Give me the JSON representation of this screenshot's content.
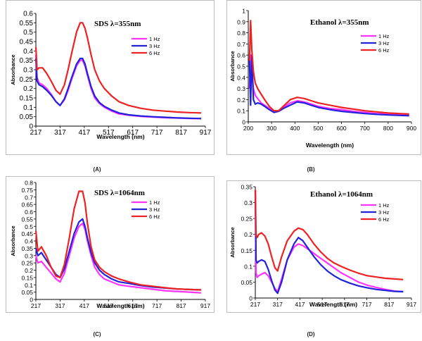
{
  "chart_data": [
    {
      "type": "line",
      "panel_label": "(A)",
      "title": "SDS   λ=355nm",
      "xlabel": "Wavelength  (nm)",
      "ylabel": "Absorbance",
      "xlim": [
        217,
        917
      ],
      "ylim": [
        0,
        0.6
      ],
      "xticks": [
        217,
        317,
        417,
        517,
        617,
        717,
        817,
        917
      ],
      "yticks": [
        "0",
        "0.05",
        "0.1",
        "0.15",
        "0.2",
        "0.25",
        "0.3",
        "0.35",
        "0.4",
        "0.45",
        "0.5",
        "0.55",
        "0.6"
      ],
      "legend_position": "top-right",
      "series": [
        {
          "name": "1 Hz",
          "color": "#ff33ff",
          "x": [
            217,
            222,
            230,
            245,
            262,
            280,
            300,
            317,
            335,
            350,
            365,
            385,
            400,
            410,
            420,
            430,
            445,
            460,
            480,
            500,
            530,
            560,
            600,
            650,
            700,
            750,
            800,
            850,
            900
          ],
          "y": [
            0.38,
            0.26,
            0.23,
            0.22,
            0.2,
            0.17,
            0.13,
            0.11,
            0.14,
            0.19,
            0.25,
            0.32,
            0.35,
            0.35,
            0.32,
            0.27,
            0.2,
            0.15,
            0.12,
            0.1,
            0.08,
            0.065,
            0.058,
            0.052,
            0.048,
            0.045,
            0.043,
            0.041,
            0.04
          ]
        },
        {
          "name": "3 Hz",
          "color": "#2222dd",
          "x": [
            217,
            222,
            230,
            245,
            262,
            280,
            300,
            317,
            335,
            350,
            365,
            385,
            400,
            410,
            420,
            430,
            445,
            460,
            480,
            500,
            530,
            560,
            600,
            650,
            700,
            750,
            800,
            850,
            900
          ],
          "y": [
            0.36,
            0.24,
            0.22,
            0.21,
            0.19,
            0.165,
            0.13,
            0.11,
            0.145,
            0.2,
            0.26,
            0.33,
            0.36,
            0.36,
            0.33,
            0.28,
            0.21,
            0.16,
            0.125,
            0.105,
            0.085,
            0.07,
            0.06,
            0.054,
            0.05,
            0.047,
            0.044,
            0.042,
            0.04
          ]
        },
        {
          "name": "6 Hz",
          "color": "#ee2222",
          "x": [
            217,
            222,
            230,
            245,
            262,
            280,
            300,
            317,
            335,
            350,
            365,
            385,
            400,
            410,
            420,
            430,
            445,
            460,
            480,
            500,
            530,
            560,
            600,
            650,
            700,
            750,
            800,
            850,
            900
          ],
          "y": [
            0.42,
            0.3,
            0.31,
            0.31,
            0.28,
            0.24,
            0.19,
            0.17,
            0.22,
            0.3,
            0.39,
            0.5,
            0.55,
            0.55,
            0.52,
            0.47,
            0.38,
            0.3,
            0.24,
            0.2,
            0.16,
            0.13,
            0.11,
            0.095,
            0.085,
            0.08,
            0.075,
            0.072,
            0.07
          ]
        }
      ]
    },
    {
      "type": "line",
      "panel_label": "(B)",
      "title": "Ethanol λ=355nm",
      "xlabel": "Wavelength  (nm)",
      "ylabel": "Absorbance",
      "xlim": [
        200,
        900
      ],
      "ylim": [
        0,
        1
      ],
      "xticks": [
        200,
        300,
        400,
        500,
        600,
        700,
        800,
        900
      ],
      "yticks": [
        "0",
        "0.1",
        "0.2",
        "0.3",
        "0.4",
        "0.5",
        "0.6",
        "0.7",
        "0.8",
        "0.9",
        "1"
      ],
      "legend_position": "top-right",
      "series": [
        {
          "name": "1 Hz",
          "color": "#ff33ff",
          "x": [
            205,
            210,
            215,
            222,
            230,
            240,
            255,
            270,
            290,
            310,
            330,
            350,
            380,
            410,
            440,
            470,
            500,
            550,
            600,
            650,
            700,
            750,
            800,
            850,
            890
          ],
          "y": [
            0.3,
            0.6,
            0.45,
            0.3,
            0.24,
            0.21,
            0.17,
            0.15,
            0.12,
            0.09,
            0.1,
            0.13,
            0.17,
            0.19,
            0.18,
            0.16,
            0.14,
            0.12,
            0.11,
            0.095,
            0.085,
            0.075,
            0.07,
            0.065,
            0.06
          ]
        },
        {
          "name": "3 Hz",
          "color": "#2222dd",
          "x": [
            205,
            210,
            215,
            222,
            230,
            240,
            255,
            270,
            290,
            310,
            330,
            350,
            380,
            410,
            440,
            470,
            500,
            550,
            600,
            650,
            700,
            750,
            800,
            850,
            890
          ],
          "y": [
            0.55,
            0.15,
            0.6,
            0.2,
            0.16,
            0.17,
            0.16,
            0.14,
            0.11,
            0.085,
            0.095,
            0.12,
            0.15,
            0.18,
            0.17,
            0.15,
            0.13,
            0.11,
            0.095,
            0.085,
            0.075,
            0.068,
            0.062,
            0.058,
            0.055
          ]
        },
        {
          "name": "6 Hz",
          "color": "#ee2222",
          "x": [
            205,
            210,
            215,
            222,
            230,
            240,
            255,
            270,
            290,
            310,
            330,
            350,
            380,
            410,
            440,
            470,
            500,
            550,
            600,
            650,
            700,
            750,
            800,
            850,
            890
          ],
          "y": [
            0.55,
            0.91,
            0.65,
            0.45,
            0.35,
            0.3,
            0.25,
            0.2,
            0.14,
            0.1,
            0.1,
            0.14,
            0.2,
            0.22,
            0.21,
            0.19,
            0.17,
            0.15,
            0.13,
            0.115,
            0.1,
            0.09,
            0.08,
            0.075,
            0.07
          ]
        }
      ]
    },
    {
      "type": "line",
      "panel_label": "(C)",
      "title": "SDS λ=1064nm",
      "xlabel": "Wavelength  (nm)",
      "ylabel": "Absorbance",
      "xlim": [
        217,
        917
      ],
      "ylim": [
        0,
        0.8
      ],
      "xticks": [
        217,
        317,
        417,
        517,
        617,
        717,
        817,
        917
      ],
      "yticks": [
        "0",
        "0.05",
        "0.1",
        "0.15",
        "0.2",
        "0.25",
        "0.3",
        "0.35",
        "0.4",
        "0.45",
        "0.5",
        "0.55",
        "0.6",
        "0.65",
        "0.7",
        "0.75",
        "0.8"
      ],
      "legend_position": "top-right",
      "series": [
        {
          "name": "1 Hz",
          "color": "#ff33ff",
          "x": [
            217,
            225,
            240,
            260,
            280,
            300,
            317,
            335,
            355,
            375,
            395,
            410,
            420,
            430,
            445,
            460,
            480,
            500,
            530,
            560,
            600,
            650,
            700,
            750,
            800,
            850,
            900
          ],
          "y": [
            0.3,
            0.25,
            0.26,
            0.22,
            0.18,
            0.14,
            0.12,
            0.18,
            0.3,
            0.42,
            0.5,
            0.52,
            0.48,
            0.4,
            0.3,
            0.22,
            0.17,
            0.14,
            0.12,
            0.1,
            0.09,
            0.08,
            0.07,
            0.06,
            0.055,
            0.05,
            0.045
          ]
        },
        {
          "name": "3 Hz",
          "color": "#2222dd",
          "x": [
            217,
            225,
            240,
            260,
            280,
            300,
            317,
            335,
            355,
            375,
            395,
            410,
            420,
            430,
            445,
            460,
            480,
            500,
            530,
            560,
            600,
            650,
            700,
            750,
            800,
            850,
            900
          ],
          "y": [
            0.35,
            0.3,
            0.32,
            0.27,
            0.22,
            0.17,
            0.15,
            0.21,
            0.33,
            0.45,
            0.53,
            0.55,
            0.5,
            0.42,
            0.32,
            0.25,
            0.2,
            0.17,
            0.14,
            0.12,
            0.11,
            0.095,
            0.085,
            0.078,
            0.072,
            0.068,
            0.065
          ]
        },
        {
          "name": "6 Hz",
          "color": "#ee2222",
          "x": [
            217,
            225,
            240,
            260,
            280,
            300,
            317,
            335,
            355,
            375,
            395,
            410,
            420,
            430,
            445,
            460,
            480,
            500,
            530,
            560,
            600,
            650,
            700,
            750,
            800,
            850,
            900
          ],
          "y": [
            0.47,
            0.33,
            0.36,
            0.3,
            0.22,
            0.16,
            0.15,
            0.24,
            0.42,
            0.62,
            0.74,
            0.74,
            0.66,
            0.52,
            0.36,
            0.27,
            0.22,
            0.19,
            0.16,
            0.14,
            0.12,
            0.1,
            0.09,
            0.08,
            0.072,
            0.068,
            0.065
          ]
        }
      ]
    },
    {
      "type": "line",
      "panel_label": "(D)",
      "title": "Ethanol λ=1064nm",
      "xlabel": "Wavelength  (nm)",
      "ylabel": "Absorbance",
      "xlim": [
        217,
        917
      ],
      "ylim": [
        0,
        0.35
      ],
      "xticks": [
        217,
        317,
        417,
        517,
        617,
        717,
        817,
        917
      ],
      "yticks": [
        "0",
        "0.05",
        "0.1",
        "0.15",
        "0.2",
        "0.25",
        "0.3",
        "0.35"
      ],
      "legend_position": "top-right",
      "series": [
        {
          "name": "1 Hz",
          "color": "#ff33ff",
          "x": [
            217,
            220,
            225,
            232,
            245,
            260,
            275,
            290,
            305,
            317,
            335,
            360,
            390,
            410,
            430,
            450,
            480,
            510,
            540,
            570,
            600,
            640,
            680,
            720,
            760,
            800,
            840,
            880
          ],
          "y": [
            0.34,
            0.08,
            0.065,
            0.07,
            0.075,
            0.08,
            0.07,
            0.05,
            0.03,
            0.02,
            0.06,
            0.12,
            0.16,
            0.17,
            0.165,
            0.155,
            0.14,
            0.125,
            0.11,
            0.095,
            0.08,
            0.065,
            0.05,
            0.04,
            0.033,
            0.027,
            0.022,
            0.02
          ]
        },
        {
          "name": "3 Hz",
          "color": "#2222dd",
          "x": [
            217,
            220,
            225,
            232,
            245,
            260,
            275,
            290,
            305,
            317,
            335,
            360,
            390,
            410,
            430,
            450,
            480,
            510,
            540,
            570,
            600,
            640,
            680,
            720,
            760,
            800,
            840,
            880
          ],
          "y": [
            0.34,
            0.12,
            0.11,
            0.115,
            0.12,
            0.115,
            0.09,
            0.055,
            0.025,
            0.015,
            0.05,
            0.12,
            0.17,
            0.19,
            0.18,
            0.16,
            0.13,
            0.105,
            0.085,
            0.07,
            0.058,
            0.047,
            0.038,
            0.032,
            0.027,
            0.024,
            0.021,
            0.02
          ]
        },
        {
          "name": "6 Hz",
          "color": "#ee2222",
          "x": [
            217,
            220,
            225,
            232,
            245,
            260,
            275,
            290,
            305,
            317,
            335,
            360,
            390,
            410,
            430,
            450,
            480,
            510,
            540,
            570,
            600,
            640,
            680,
            720,
            760,
            800,
            840,
            880
          ],
          "y": [
            0.34,
            0.2,
            0.19,
            0.2,
            0.205,
            0.195,
            0.17,
            0.13,
            0.095,
            0.085,
            0.13,
            0.18,
            0.21,
            0.22,
            0.215,
            0.2,
            0.17,
            0.145,
            0.125,
            0.11,
            0.1,
            0.088,
            0.078,
            0.07,
            0.066,
            0.062,
            0.06,
            0.058
          ]
        }
      ]
    }
  ]
}
